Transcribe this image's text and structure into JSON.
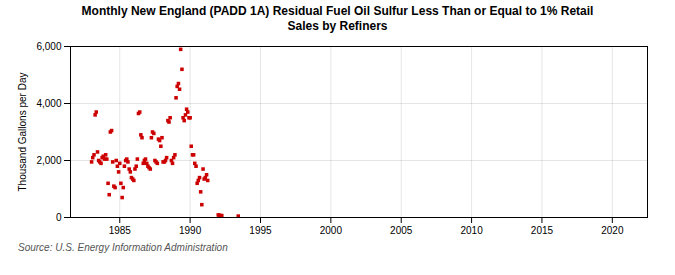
{
  "chart_data": {
    "type": "scatter",
    "title": "Monthly New England (PADD 1A) Residual Fuel Oil Sulfur Less Than or Equal to 1% Retail\nSales by Refiners",
    "ylabel": "Thousand Gallons per Day",
    "source": "Source: U.S. Energy Information Administration",
    "color": "#cc0000",
    "marker": "square",
    "grid": true,
    "xlim": [
      1981.5,
      2022.5
    ],
    "ylim": [
      0,
      6000
    ],
    "xticks": [
      1985,
      1990,
      1995,
      2000,
      2005,
      2010,
      2015,
      2020
    ],
    "yticks": [
      0,
      {
        "value": 2000,
        "label": "2,000"
      },
      {
        "value": 4000,
        "label": "4,000"
      },
      {
        "value": 6000,
        "label": "6,000"
      }
    ],
    "x": [
      1983.0,
      1983.08,
      1983.17,
      1983.25,
      1983.33,
      1983.42,
      1983.5,
      1983.58,
      1983.67,
      1983.75,
      1983.83,
      1983.92,
      1984.0,
      1984.08,
      1984.17,
      1984.25,
      1984.33,
      1984.42,
      1984.5,
      1984.58,
      1984.67,
      1984.75,
      1984.83,
      1984.92,
      1985.0,
      1985.08,
      1985.17,
      1985.25,
      1985.33,
      1985.42,
      1985.5,
      1985.58,
      1985.67,
      1985.75,
      1985.83,
      1985.92,
      1986.0,
      1986.08,
      1986.17,
      1986.25,
      1986.33,
      1986.42,
      1986.5,
      1986.58,
      1986.67,
      1986.75,
      1986.83,
      1986.92,
      1987.0,
      1987.08,
      1987.17,
      1987.25,
      1987.33,
      1987.42,
      1987.5,
      1987.58,
      1987.67,
      1987.75,
      1987.83,
      1987.92,
      1988.0,
      1988.08,
      1988.17,
      1988.25,
      1988.33,
      1988.42,
      1988.5,
      1988.58,
      1988.67,
      1988.75,
      1988.83,
      1988.92,
      1989.0,
      1989.08,
      1989.17,
      1989.25,
      1989.33,
      1989.42,
      1989.5,
      1989.58,
      1989.67,
      1989.75,
      1989.83,
      1989.92,
      1990.0,
      1990.08,
      1990.17,
      1990.25,
      1990.33,
      1990.42,
      1990.5,
      1990.58,
      1990.67,
      1990.75,
      1990.83,
      1990.92,
      1991.0,
      1991.08,
      1991.17,
      1991.25,
      1992.0,
      1992.08,
      1992.17,
      1992.25,
      1993.42
    ],
    "values": [
      1950,
      2100,
      2200,
      3600,
      3700,
      2300,
      2000,
      1950,
      1900,
      2100,
      2150,
      2050,
      2200,
      2050,
      1200,
      800,
      3000,
      3050,
      1950,
      1100,
      1050,
      2000,
      1800,
      1600,
      1900,
      1200,
      700,
      1050,
      1800,
      2000,
      2050,
      1950,
      1700,
      1600,
      1400,
      1350,
      1300,
      1700,
      1800,
      2050,
      3650,
      3700,
      2900,
      2800,
      1900,
      2000,
      2050,
      1900,
      1800,
      1750,
      1700,
      2800,
      3000,
      2950,
      2000,
      1950,
      1900,
      2750,
      2700,
      2500,
      2800,
      1950,
      1950,
      2000,
      2100,
      3400,
      3350,
      3500,
      2000,
      1900,
      2100,
      2200,
      4200,
      4600,
      4700,
      4500,
      5900,
      5200,
      3500,
      3400,
      3600,
      3800,
      3700,
      3500,
      3500,
      2500,
      2200,
      2200,
      1900,
      1800,
      1200,
      1300,
      1400,
      900,
      450,
      1700,
      1350,
      1400,
      1500,
      1300,
      90,
      75,
      70,
      65,
      50
    ]
  }
}
